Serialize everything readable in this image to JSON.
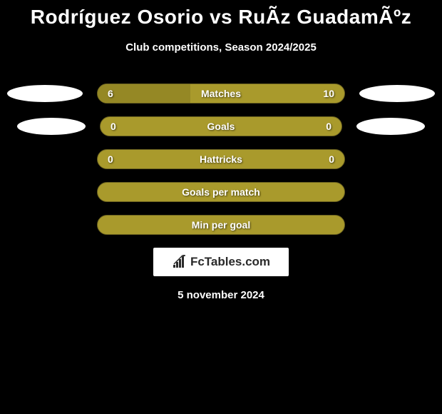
{
  "title": "Rodríguez Osorio vs RuÃ­z GuadamÃºz",
  "subtitle": "Club competitions, Season 2024/2025",
  "date": "5 november 2024",
  "logo_text": "FcTables.com",
  "colors": {
    "background": "#000000",
    "bar_bg": "#a99a2c",
    "bar_fill": "#958825",
    "text": "#ffffff"
  },
  "stats": [
    {
      "label": "Matches",
      "left_value": "6",
      "right_value": "10",
      "left_percent": 37.5,
      "show_left_avatar": true,
      "show_right_avatar": true
    },
    {
      "label": "Goals",
      "left_value": "0",
      "right_value": "0",
      "left_percent": 0,
      "show_left_avatar": true,
      "show_right_avatar": true
    },
    {
      "label": "Hattricks",
      "left_value": "0",
      "right_value": "0",
      "left_percent": 0,
      "show_left_avatar": false,
      "show_right_avatar": false
    },
    {
      "label": "Goals per match",
      "left_value": "",
      "right_value": "",
      "left_percent": 0,
      "show_left_avatar": false,
      "show_right_avatar": false
    },
    {
      "label": "Min per goal",
      "left_value": "",
      "right_value": "",
      "left_percent": 0,
      "show_left_avatar": false,
      "show_right_avatar": false
    }
  ]
}
